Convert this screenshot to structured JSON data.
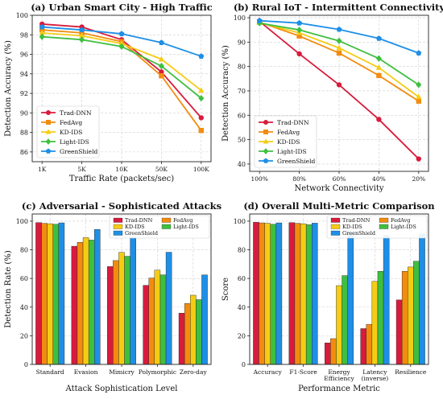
{
  "chart_data": [
    {
      "type": "line",
      "title": "(a) Urban Smart City - High Traffic",
      "xlabel": "Traffic Rate (packets/sec)",
      "ylabel": "Detection Accuracy (%)",
      "categories": [
        "1K",
        "5K",
        "10K",
        "50K",
        "100K"
      ],
      "ylim": [
        85,
        100
      ],
      "yticks": [
        86,
        88,
        90,
        92,
        94,
        96,
        98,
        100
      ],
      "grid": true,
      "legend_position": "lower-left",
      "series": [
        {
          "name": "Trad-DNN",
          "color": "#d81b3c",
          "marker": "circle",
          "values": [
            99.1,
            98.8,
            97.5,
            94.2,
            89.5
          ]
        },
        {
          "name": "FedAvg",
          "color": "#f28c0f",
          "marker": "square",
          "values": [
            98.5,
            98.2,
            97.3,
            93.8,
            88.2
          ]
        },
        {
          "name": "KD-IDS",
          "color": "#f5cc14",
          "marker": "triangle",
          "values": [
            98.2,
            97.9,
            97.1,
            95.5,
            92.3
          ]
        },
        {
          "name": "Light-IDS",
          "color": "#3fbf3f",
          "marker": "diamond",
          "values": [
            97.8,
            97.5,
            96.8,
            94.8,
            91.5
          ]
        },
        {
          "name": "GreenShield",
          "color": "#1e8fe6",
          "marker": "pentagon",
          "values": [
            98.8,
            98.5,
            98.1,
            97.2,
            95.8
          ]
        }
      ]
    },
    {
      "type": "line",
      "title": "(b) Rural IoT - Intermittent Connectivity",
      "xlabel": "Network Connectivity",
      "ylabel": "Detection Accuracy (%)",
      "categories": [
        "100%",
        "80%",
        "60%",
        "40%",
        "20%"
      ],
      "ylim": [
        37,
        101
      ],
      "yticks": [
        40,
        50,
        60,
        70,
        80,
        90,
        100
      ],
      "grid": true,
      "legend_position": "lower-left",
      "series": [
        {
          "name": "Trad-DNN",
          "color": "#d81b3c",
          "marker": "circle",
          "values": [
            98.5,
            85.2,
            72.5,
            58.3,
            42.1
          ]
        },
        {
          "name": "FedAvg",
          "color": "#f28c0f",
          "marker": "square",
          "values": [
            98.2,
            92.5,
            85.5,
            76.3,
            65.8
          ]
        },
        {
          "name": "KD-IDS",
          "color": "#f5cc14",
          "marker": "triangle",
          "values": [
            98.0,
            93.8,
            87.6,
            79.5,
            67.5
          ]
        },
        {
          "name": "Light-IDS",
          "color": "#3fbf3f",
          "marker": "diamond",
          "values": [
            97.8,
            95.0,
            90.5,
            83.3,
            72.5
          ]
        },
        {
          "name": "GreenShield",
          "color": "#1e8fe6",
          "marker": "pentagon",
          "values": [
            98.8,
            97.8,
            95.2,
            91.5,
            85.5
          ]
        }
      ]
    },
    {
      "type": "bar",
      "title": "(c) Adversarial - Sophisticated Attacks",
      "xlabel": "Attack Sophistication Level",
      "ylabel": "Detection Rate (%)",
      "categories": [
        "Standard",
        "Evasion",
        "Mimicry",
        "Polymorphic",
        "Zero-day"
      ],
      "ylim": [
        0,
        105
      ],
      "yticks": [
        0,
        20,
        40,
        60,
        80,
        100
      ],
      "grid": true,
      "legend_position": "top",
      "series": [
        {
          "name": "Trad-DNN",
          "color": "#d81b3c",
          "values": [
            99.0,
            82.5,
            68.3,
            55.2,
            35.8
          ]
        },
        {
          "name": "FedAvg",
          "color": "#f28c0f",
          "values": [
            98.5,
            85.2,
            72.5,
            60.3,
            42.5
          ]
        },
        {
          "name": "KD-IDS",
          "color": "#f5cc14",
          "values": [
            98.2,
            88.5,
            78.2,
            65.8,
            48.3
          ]
        },
        {
          "name": "Light-IDS",
          "color": "#3fbf3f",
          "values": [
            97.8,
            86.8,
            75.5,
            62.5,
            45.2
          ]
        },
        {
          "name": "GreenShield",
          "color": "#1e8fe6",
          "values": [
            98.8,
            94.2,
            88.5,
            78.3,
            62.5
          ]
        }
      ]
    },
    {
      "type": "bar",
      "title": "(d) Overall Multi-Metric Comparison",
      "xlabel": "Performance Metric",
      "ylabel": "Score",
      "categories": [
        "Accuracy",
        "F1-Score",
        "Energy|Efficiency",
        "Latency|(inverse)",
        "Resilience"
      ],
      "ylim": [
        0,
        105
      ],
      "yticks": [
        0,
        20,
        40,
        60,
        80,
        100
      ],
      "grid": true,
      "legend_position": "top",
      "series": [
        {
          "name": "Trad-DNN",
          "color": "#d81b3c",
          "values": [
            99.2,
            99.0,
            15.0,
            25.0,
            45.0
          ]
        },
        {
          "name": "FedAvg",
          "color": "#f28c0f",
          "values": [
            98.8,
            98.5,
            18.0,
            28.0,
            65.0
          ]
        },
        {
          "name": "KD-IDS",
          "color": "#f5cc14",
          "values": [
            98.5,
            98.2,
            55.0,
            58.0,
            68.0
          ]
        },
        {
          "name": "Light-IDS",
          "color": "#3fbf3f",
          "values": [
            97.8,
            97.5,
            62.0,
            65.0,
            72.0
          ]
        },
        {
          "name": "GreenShield",
          "color": "#1e8fe6",
          "values": [
            98.8,
            98.6,
            92.0,
            90.0,
            91.0
          ]
        }
      ]
    }
  ]
}
